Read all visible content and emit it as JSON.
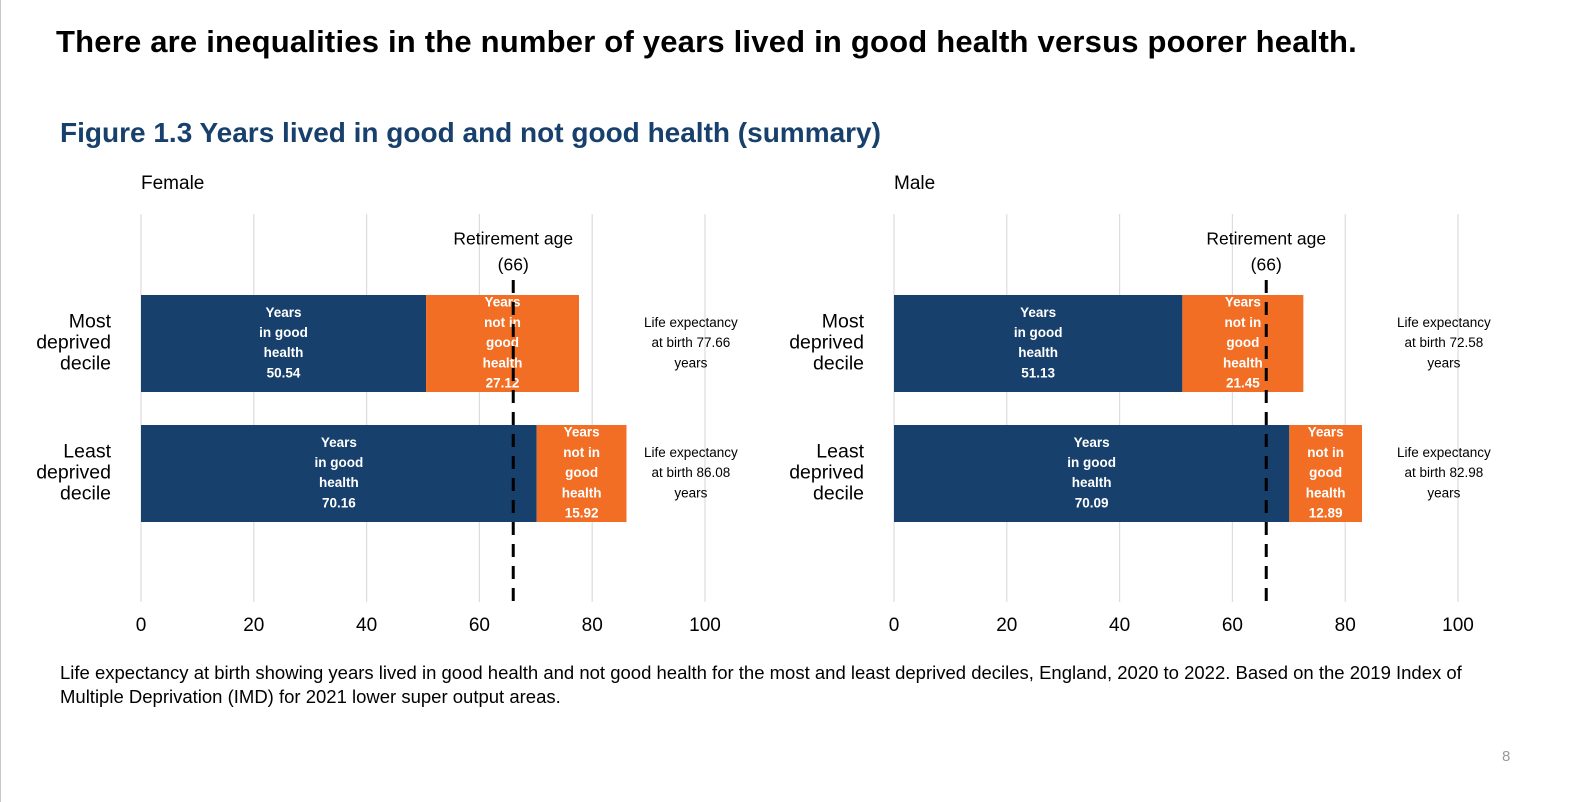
{
  "slide": {
    "headline": "There are inequalities in the number of years lived in good health versus poorer health.",
    "figure_title": "Figure 1.3 Years lived in good and not good health (summary)",
    "caption": "Life expectancy at birth showing years lived in good health and not good health for the most and least deprived deciles, England, 2020 to 2022. Based on the 2019 Index of Multiple Deprivation (IMD) for 2021 lower super output areas.",
    "page_number": "8"
  },
  "colors": {
    "good": "#17406d",
    "not_good": "#f26e24",
    "grid": "#dcdcdc",
    "title": "#17406d"
  },
  "chart_data": [
    {
      "type": "bar",
      "orientation": "horizontal",
      "stacked": true,
      "title": "Female",
      "categories": [
        {
          "lines": [
            "Most",
            "deprived",
            "decile"
          ]
        },
        {
          "lines": [
            "Least",
            "deprived",
            "decile"
          ]
        }
      ],
      "series": [
        {
          "name": "Years in good health",
          "values": [
            50.54,
            70.16
          ],
          "label_lines": [
            [
              "Years",
              "in good",
              "health",
              "50.54"
            ],
            [
              "Years",
              "in good",
              "health",
              "70.16"
            ]
          ]
        },
        {
          "name": "Years not in good health",
          "values": [
            27.12,
            15.92
          ],
          "label_lines": [
            [
              "Years",
              "not in",
              "good",
              "health",
              "27.12"
            ],
            [
              "Years",
              "not in",
              "good",
              "health",
              "15.92"
            ]
          ]
        }
      ],
      "life_expectancy_labels": [
        [
          "Life expectancy",
          "at birth 77.66",
          "years"
        ],
        [
          "Life expectancy",
          "at birth 86.08",
          "years"
        ]
      ],
      "reference_line": {
        "value": 66,
        "label_lines": [
          "Retirement age",
          "(66)"
        ]
      },
      "xlim": [
        0,
        100
      ],
      "xticks": [
        0,
        20,
        40,
        60,
        80,
        100
      ],
      "xlabel": "",
      "ylabel": ""
    },
    {
      "type": "bar",
      "orientation": "horizontal",
      "stacked": true,
      "title": "Male",
      "categories": [
        {
          "lines": [
            "Most",
            "deprived",
            "decile"
          ]
        },
        {
          "lines": [
            "Least",
            "deprived",
            "decile"
          ]
        }
      ],
      "series": [
        {
          "name": "Years in good health",
          "values": [
            51.13,
            70.09
          ],
          "label_lines": [
            [
              "Years",
              "in good",
              "health",
              "51.13"
            ],
            [
              "Years",
              "in good",
              "health",
              "70.09"
            ]
          ]
        },
        {
          "name": "Years not in good health",
          "values": [
            21.45,
            12.89
          ],
          "label_lines": [
            [
              "Years",
              "not in",
              "good",
              "health",
              "21.45"
            ],
            [
              "Years",
              "not in",
              "good",
              "health",
              "12.89"
            ]
          ]
        }
      ],
      "life_expectancy_labels": [
        [
          "Life expectancy",
          "at birth 72.58",
          "years"
        ],
        [
          "Life expectancy",
          "at birth 82.98",
          "years"
        ]
      ],
      "reference_line": {
        "value": 66,
        "label_lines": [
          "Retirement age",
          "(66)"
        ]
      },
      "xlim": [
        0,
        100
      ],
      "xticks": [
        0,
        20,
        40,
        60,
        80,
        100
      ],
      "xlabel": "",
      "ylabel": ""
    }
  ]
}
